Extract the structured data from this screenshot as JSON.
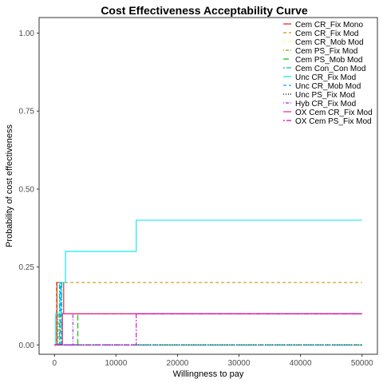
{
  "chart_data": {
    "type": "line",
    "title": "Cost Effectiveness Acceptability Curve",
    "xlabel": "Willingness to pay",
    "ylabel": "Probability of cost effectiveness",
    "xlim": [
      -2500,
      52500
    ],
    "ylim": [
      -0.03,
      1.05
    ],
    "x_ticks": [
      0,
      10000,
      20000,
      30000,
      40000,
      50000
    ],
    "x_tick_labels": [
      "0",
      "10000",
      "20000",
      "30000",
      "40000",
      "50000"
    ],
    "y_ticks": [
      0,
      0.25,
      0.5,
      0.75,
      1.0
    ],
    "y_tick_labels": [
      "0.00",
      "0.25",
      "0.50",
      "0.75",
      "1.00"
    ],
    "grid": false,
    "legend_position": "top-right",
    "series": [
      {
        "name": "Cem CR_Fix Mono",
        "color": "#e41a1c",
        "dash": "solid",
        "points": [
          [
            0,
            0
          ],
          [
            400,
            0
          ],
          [
            400,
            0.2
          ],
          [
            1500,
            0.2
          ],
          [
            1500,
            0.1
          ],
          [
            50000,
            0.1
          ]
        ]
      },
      {
        "name": "Cem CR_Fix Mod",
        "color": "#d39200",
        "dash": "dashed",
        "points": [
          [
            0,
            0
          ],
          [
            300,
            0
          ],
          [
            300,
            0.2
          ],
          [
            50000,
            0.2
          ]
        ]
      },
      {
        "name": "Cem CR_Mob Mod",
        "color": "#fdf200",
        "dash": "dotted",
        "points": [
          [
            0,
            0
          ],
          [
            50000,
            0
          ]
        ]
      },
      {
        "name": "Cem PS_Fix Mod",
        "color": "#7cae00",
        "dash": "dotdash",
        "points": [
          [
            0,
            0
          ],
          [
            600,
            0
          ],
          [
            600,
            0.1
          ],
          [
            1000,
            0.1
          ],
          [
            1000,
            0
          ],
          [
            50000,
            0
          ]
        ]
      },
      {
        "name": "Cem PS_Mob Mod",
        "color": "#00c000",
        "dash": "longdash",
        "points": [
          [
            0,
            0
          ],
          [
            3800,
            0
          ],
          [
            3800,
            0.1
          ],
          [
            50000,
            0.1
          ]
        ]
      },
      {
        "name": "Cem Con_Con Mod",
        "color": "#00bfa0",
        "dash": "twodash",
        "points": [
          [
            0,
            0
          ],
          [
            800,
            0
          ],
          [
            800,
            0.2
          ],
          [
            1200,
            0.2
          ],
          [
            1200,
            0
          ],
          [
            50000,
            0
          ]
        ]
      },
      {
        "name": "Unc CR_Fix Mod",
        "color": "#00e5ee",
        "dash": "solid",
        "points": [
          [
            0,
            0
          ],
          [
            200,
            0
          ],
          [
            200,
            0.1
          ],
          [
            1000,
            0.1
          ],
          [
            1000,
            0.2
          ],
          [
            1800,
            0.2
          ],
          [
            1800,
            0.3
          ],
          [
            13300,
            0.3
          ],
          [
            13300,
            0.4
          ],
          [
            50000,
            0.4
          ]
        ]
      },
      {
        "name": "Unc CR_Mob Mod",
        "color": "#00a9ff",
        "dash": "dashed",
        "points": [
          [
            0,
            0
          ],
          [
            900,
            0
          ],
          [
            900,
            0.2
          ],
          [
            1100,
            0.2
          ],
          [
            1100,
            0
          ],
          [
            50000,
            0
          ]
        ]
      },
      {
        "name": "Unc PS_Fix Mod",
        "color": "#000000",
        "dash": "dotted",
        "points": [
          [
            0,
            0
          ],
          [
            50000,
            0
          ]
        ]
      },
      {
        "name": "Hyb CR_Fix Mod",
        "color": "#a020f0",
        "dash": "dotdash",
        "points": [
          [
            0,
            0
          ],
          [
            3000,
            0
          ],
          [
            3000,
            0.1
          ],
          [
            50000,
            0.1
          ]
        ]
      },
      {
        "name": "OX Cem CR_Fix Mod",
        "color": "#e7298a",
        "dash": "solid",
        "points": [
          [
            0,
            0
          ],
          [
            1300,
            0
          ],
          [
            1300,
            0.1
          ],
          [
            50000,
            0.1
          ]
        ]
      },
      {
        "name": "OX Cem PS_Fix Mod",
        "color": "#cc00cc",
        "dash": "twodash",
        "points": [
          [
            0,
            0
          ],
          [
            13300,
            0
          ],
          [
            13300,
            0.1
          ],
          [
            50000,
            0.1
          ]
        ]
      }
    ]
  }
}
